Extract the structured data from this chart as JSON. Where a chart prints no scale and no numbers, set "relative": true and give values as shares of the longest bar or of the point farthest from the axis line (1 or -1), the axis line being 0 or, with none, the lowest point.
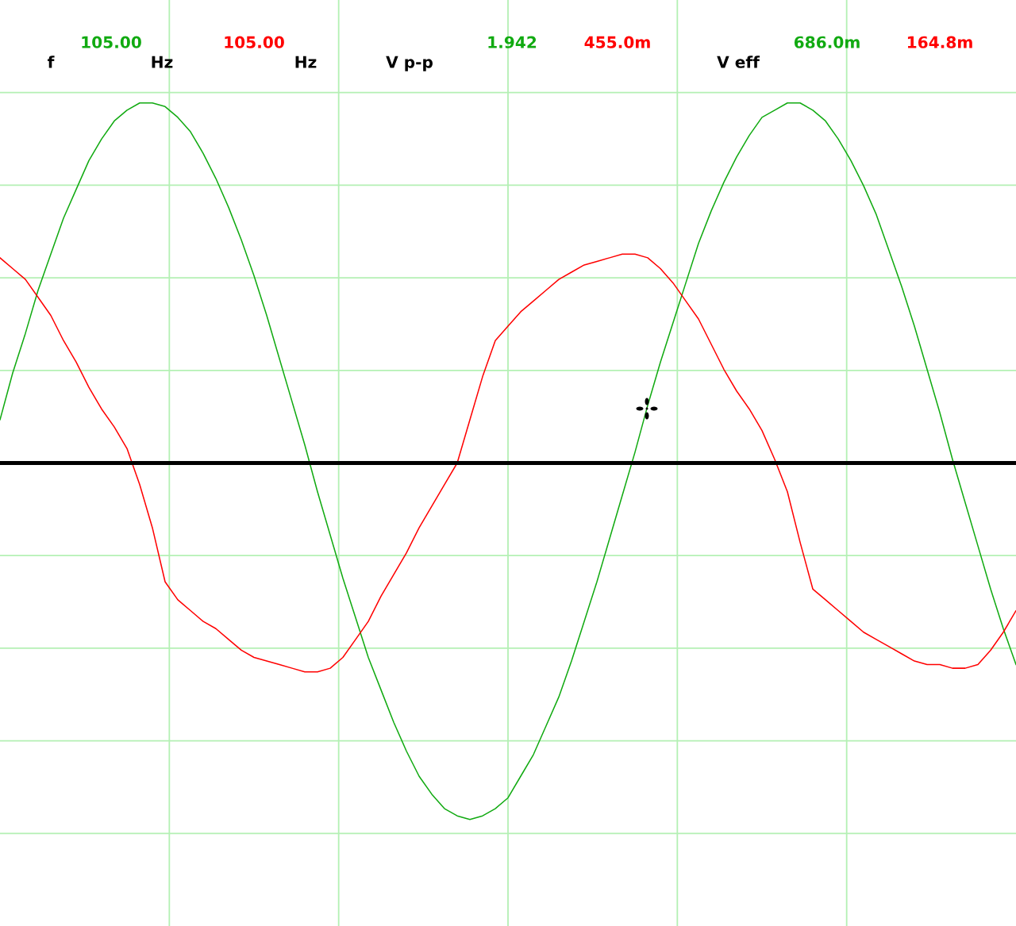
{
  "chart_data": {
    "type": "line",
    "relative": true,
    "categories": [
      null,
      null,
      null,
      null,
      null,
      null,
      null,
      null,
      null,
      null,
      null,
      null,
      null,
      null,
      null,
      null,
      null,
      null,
      null,
      null,
      null,
      null,
      null,
      null,
      null,
      null,
      null,
      null,
      null,
      null,
      null,
      null,
      null,
      null,
      null,
      null,
      null,
      null,
      null,
      null,
      null,
      null,
      null,
      null,
      null,
      null,
      null,
      null,
      null,
      null,
      null,
      null,
      null,
      null,
      null,
      null,
      null,
      null,
      null,
      null,
      null,
      null,
      null,
      null,
      null,
      null,
      null,
      null,
      null,
      null,
      null,
      null,
      null,
      null,
      null,
      null,
      null,
      null,
      null,
      null,
      null
    ],
    "series": [
      {
        "color": "#11aa11",
        "values": [
          0.12,
          0.25,
          0.36,
          0.48,
          0.58,
          0.68,
          0.76,
          0.84,
          0.9,
          0.95,
          0.98,
          1.0,
          1.0,
          0.99,
          0.96,
          0.92,
          0.86,
          0.79,
          0.71,
          0.62,
          0.52,
          0.41,
          0.29,
          0.17,
          0.05,
          -0.08,
          -0.2,
          -0.32,
          -0.43,
          -0.54,
          -0.63,
          -0.72,
          -0.8,
          -0.87,
          -0.92,
          -0.96,
          -0.98,
          -0.99,
          -0.98,
          -0.96,
          -0.93,
          -0.87,
          -0.81,
          -0.73,
          -0.65,
          -0.55,
          -0.44,
          -0.33,
          -0.21,
          -0.09,
          0.03,
          0.16,
          0.28,
          0.39,
          0.5,
          0.61,
          0.7,
          0.78,
          0.85,
          0.91,
          0.96,
          0.98,
          1.0,
          1.0,
          0.98,
          0.95,
          0.9,
          0.84,
          0.77,
          0.69,
          0.59,
          0.49,
          0.38,
          0.26,
          0.14,
          0.01,
          -0.11,
          -0.23,
          -0.35,
          -0.46,
          -0.56
        ]
      },
      {
        "color": "#ff0000",
        "values": [
          0.57,
          0.54,
          0.51,
          0.46,
          0.41,
          0.34,
          0.28,
          0.21,
          0.15,
          0.1,
          0.04,
          -0.06,
          -0.18,
          -0.33,
          -0.38,
          -0.41,
          -0.44,
          -0.46,
          -0.49,
          -0.52,
          -0.54,
          -0.55,
          -0.56,
          -0.57,
          -0.58,
          -0.58,
          -0.57,
          -0.54,
          -0.49,
          -0.44,
          -0.37,
          -0.31,
          -0.25,
          -0.18,
          -0.12,
          -0.06,
          0.0,
          0.12,
          0.24,
          0.34,
          0.38,
          0.42,
          0.45,
          0.48,
          0.51,
          0.53,
          0.55,
          0.56,
          0.57,
          0.58,
          0.58,
          0.57,
          0.54,
          0.5,
          0.45,
          0.4,
          0.33,
          0.26,
          0.2,
          0.15,
          0.09,
          0.01,
          -0.08,
          -0.22,
          -0.35,
          -0.38,
          -0.41,
          -0.44,
          -0.47,
          -0.49,
          -0.51,
          -0.53,
          -0.55,
          -0.56,
          -0.56,
          -0.57,
          -0.57,
          -0.56,
          -0.52,
          -0.47,
          -0.41
        ]
      }
    ],
    "grid": true,
    "tick_labels": false,
    "line_style": "solid",
    "annotations": [
      "f",
      "105.00",
      "Hz",
      "105.00",
      "Hz",
      "V p-p",
      "1.942",
      "455.0m",
      "V eff",
      "686.0m",
      "164.8m"
    ]
  }
}
